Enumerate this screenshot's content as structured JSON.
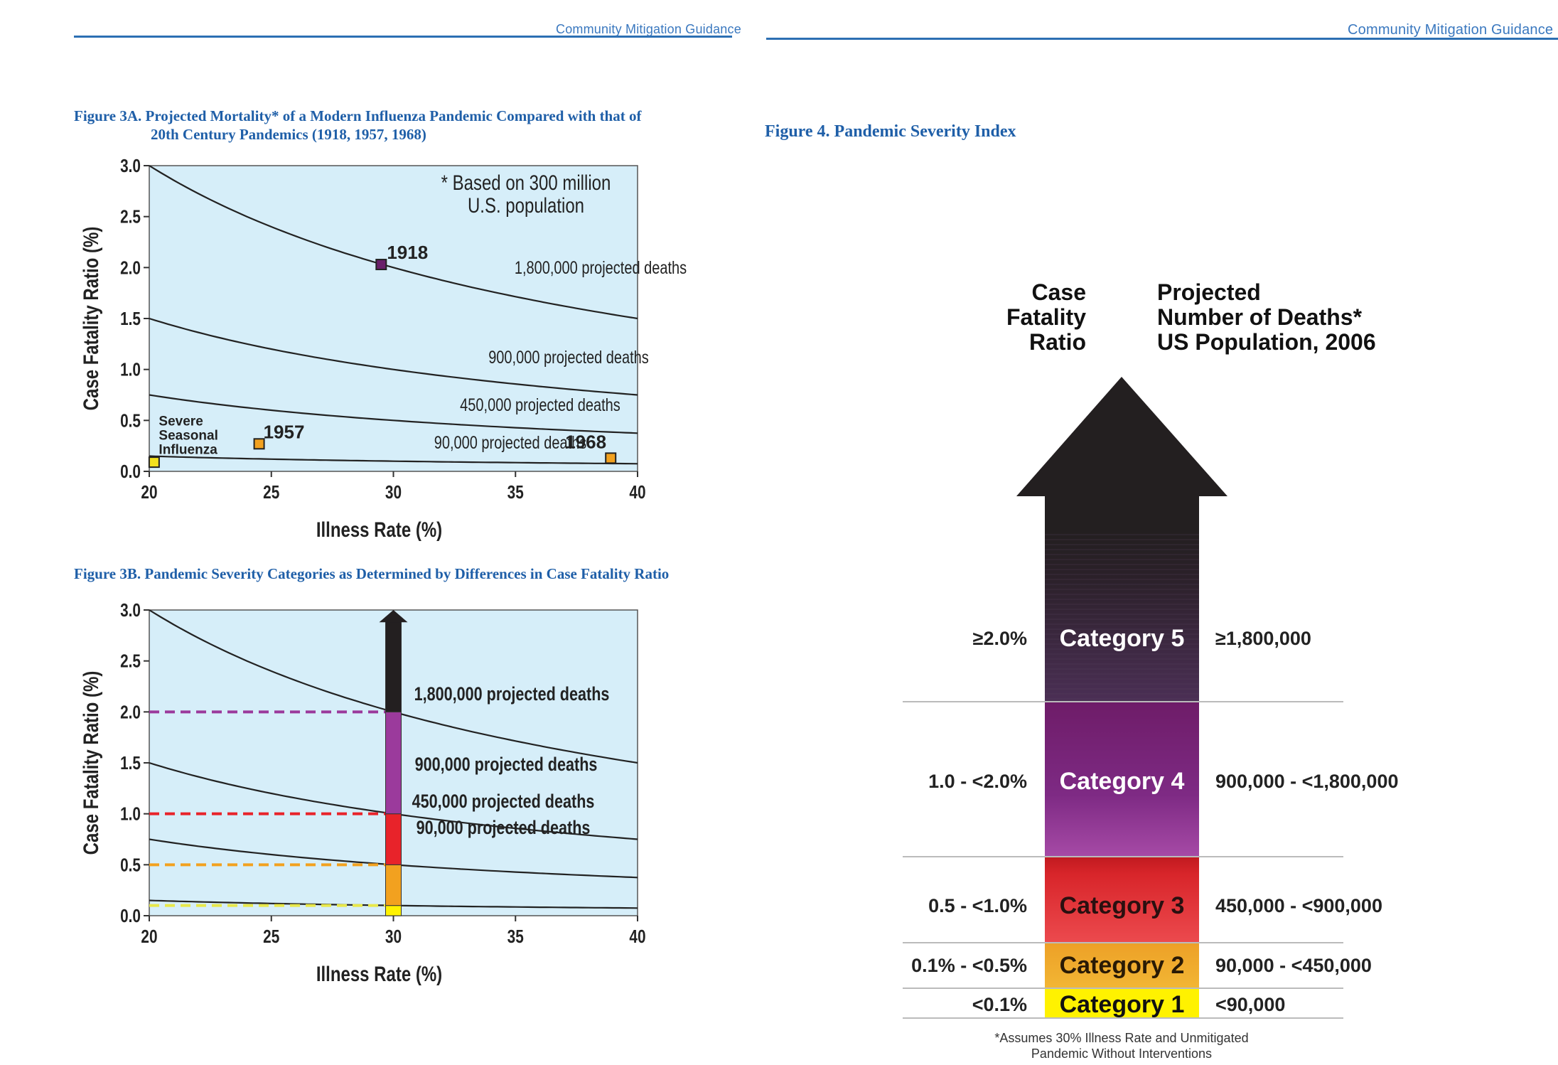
{
  "header": {
    "left_title": "Community Mitigation Guidance",
    "right_title": "Community Mitigation Guidance"
  },
  "colors": {
    "accent": "#1f5fa8",
    "plot_bg": "#d6eef9",
    "cat5": "#231f20",
    "cat4": "#7b2a82",
    "cat3": "#e8232a",
    "cat2": "#f2a11f",
    "cat1": "#fff200"
  },
  "fig3a": {
    "caption_line1": "Figure 3A. Projected Mortality* of a Modern Influenza Pandemic Compared with that of",
    "caption_line2": "20th Century Pandemics (1918, 1957, 1968)"
  },
  "fig3b": {
    "caption": "Figure 3B. Pandemic Severity Categories as Determined by Differences in Case Fatality Ratio"
  },
  "fig4": {
    "caption": "Figure 4. Pandemic Severity Index",
    "col_left_header": [
      "Case",
      "Fatality",
      "Ratio"
    ],
    "col_right_header": [
      "Projected",
      "Number of Deaths*",
      "US Population, 2006"
    ],
    "footnote_line1": "*Assumes 30% Illness Rate and Unmitigated",
    "footnote_line2": "Pandemic Without Interventions"
  },
  "chart_data": [
    {
      "type": "line",
      "id": "fig3a",
      "xlabel": "Illness Rate (%)",
      "ylabel": "Case Fatality Ratio (%)",
      "xlim": [
        20,
        40
      ],
      "ylim": [
        0.0,
        3.0
      ],
      "xticks": [
        "20",
        "25",
        "30",
        "35",
        "40"
      ],
      "yticks": [
        "0.0",
        "0.5",
        "1.0",
        "1.5",
        "2.0",
        "2.5",
        "3.0"
      ],
      "annotation_line1": "* Based on 300 million",
      "annotation_line2": "U.S. population",
      "series": [
        {
          "name": "1,800,000 projected deaths",
          "deaths": 1800000
        },
        {
          "name": "900,000 projected deaths",
          "deaths": 900000
        },
        {
          "name": "450,000 projected deaths",
          "deaths": 450000
        },
        {
          "name": "90,000 projected deaths",
          "deaths": 90000
        }
      ],
      "points": [
        {
          "label": "1918",
          "x": 29.5,
          "y": 2.03
        },
        {
          "label": "1957",
          "x": 24.5,
          "y": 0.27
        },
        {
          "label": "1968",
          "x": 38.9,
          "y": 0.13
        },
        {
          "label": "Severe Seasonal Influenza",
          "x": 20.2,
          "y": 0.09
        }
      ],
      "seasonal_label": [
        "Severe",
        "Seasonal",
        "Influenza"
      ]
    },
    {
      "type": "line",
      "id": "fig3b",
      "xlabel": "Illness Rate (%)",
      "ylabel": "Case Fatality Ratio (%)",
      "xlim": [
        20,
        40
      ],
      "ylim": [
        0.0,
        3.0
      ],
      "xticks": [
        "20",
        "25",
        "30",
        "35",
        "40"
      ],
      "yticks": [
        "0.0",
        "0.5",
        "1.0",
        "1.5",
        "2.0",
        "2.5",
        "3.0"
      ],
      "series": [
        {
          "name": "1,800,000 projected deaths",
          "deaths": 1800000
        },
        {
          "name": "900,000 projected deaths",
          "deaths": 900000
        },
        {
          "name": "450,000 projected deaths",
          "deaths": 450000
        },
        {
          "name": "90,000 projected deaths",
          "deaths": 90000
        }
      ],
      "thresholds": [
        {
          "y": 2.0,
          "color": "#9b3a9c"
        },
        {
          "y": 1.0,
          "color": "#e8232a"
        },
        {
          "y": 0.5,
          "color": "#f2a11f"
        },
        {
          "y": 0.1,
          "color": "#e8e84a"
        }
      ],
      "bar_x": 30
    },
    {
      "type": "table",
      "id": "fig4",
      "categories": [
        {
          "name": "Category 5",
          "cfr": "≥2.0%",
          "deaths": "≥1,800,000"
        },
        {
          "name": "Category 4",
          "cfr": "1.0 - <2.0%",
          "deaths": "900,000 - <1,800,000"
        },
        {
          "name": "Category 3",
          "cfr": "0.5 - <1.0%",
          "deaths": "450,000 - <900,000"
        },
        {
          "name": "Category 2",
          "cfr": "0.1% - <0.5%",
          "deaths": "90,000 - <450,000"
        },
        {
          "name": "Category 1",
          "cfr": "<0.1%",
          "deaths": "<90,000"
        }
      ]
    }
  ]
}
